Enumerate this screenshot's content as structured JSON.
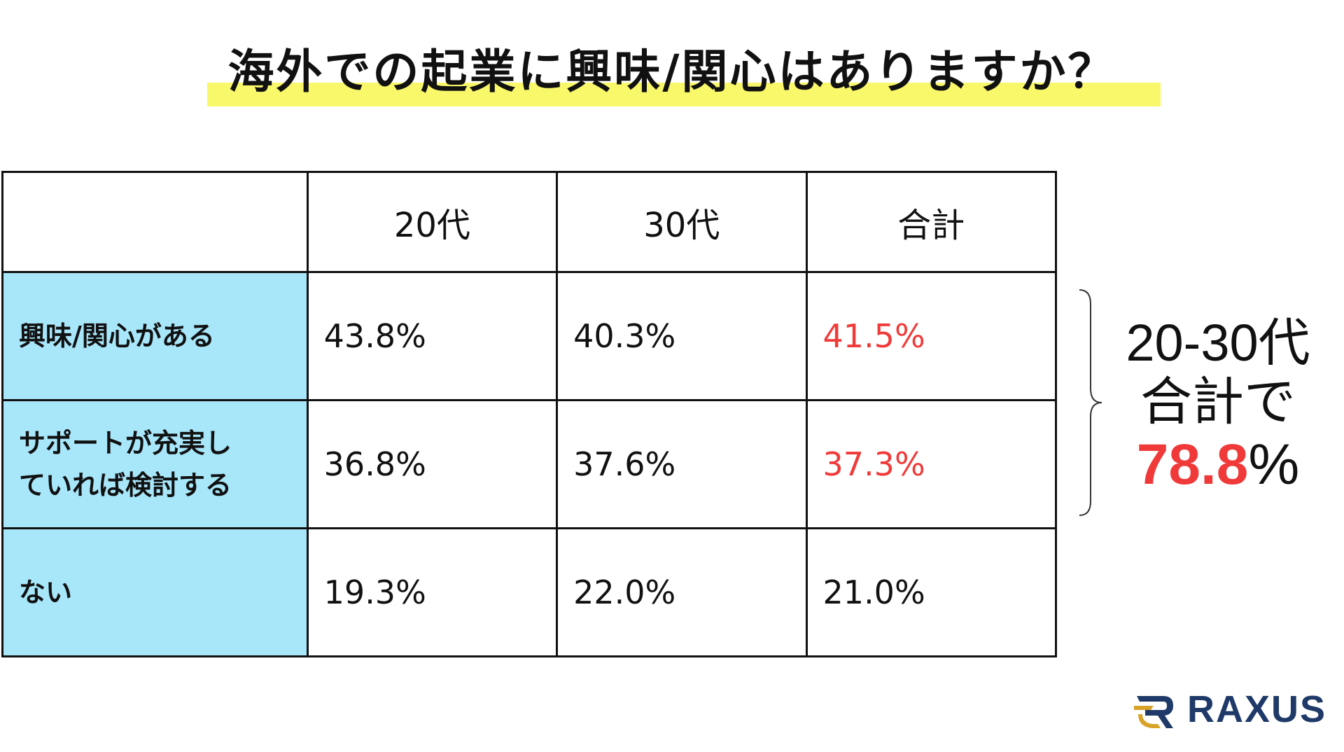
{
  "title": "海外での起業に興味/関心はありますか？",
  "chart_data": {
    "type": "table",
    "title": "海外での起業に興味/関心はありますか？",
    "columns": [
      "",
      "20代",
      "30代",
      "合計"
    ],
    "rows": [
      {
        "label_lines": [
          "興味/関心がある"
        ],
        "values": [
          "43.8%",
          "40.3%",
          "41.5%"
        ]
      },
      {
        "label_lines": [
          "サポートが充実し",
          "ていれば検討する"
        ],
        "values": [
          "36.8%",
          "37.6%",
          "37.3%"
        ]
      },
      {
        "label_lines": [
          "ない"
        ],
        "values": [
          "19.3%",
          "22.0%",
          "21.0%"
        ]
      }
    ],
    "highlight_column": "合計",
    "highlight_rows": [
      0,
      1
    ]
  },
  "summary": {
    "line1": "20-30代",
    "line2": "合計で",
    "value": "78.8",
    "unit": "%"
  },
  "logo": {
    "text": "RAXUS"
  },
  "colors": {
    "highlight_bar": "#f9f76a",
    "label_cell_bg": "#a8e6fa",
    "emphasis_red": "#f03a3a",
    "logo_navy": "#1f3a68",
    "logo_gold": "#d9a32a"
  }
}
